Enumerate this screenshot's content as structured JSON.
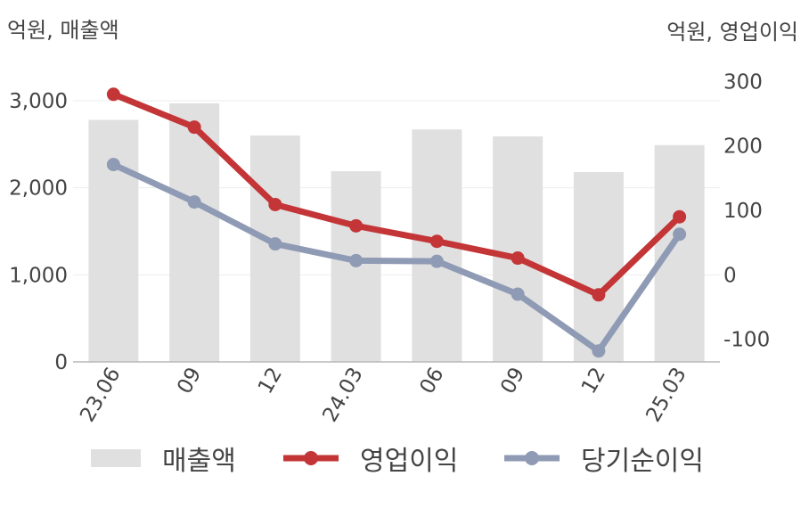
{
  "chart_data": {
    "type": "bar+line",
    "left_axis_unit": "억원, 매출액",
    "right_axis_unit": "억원, 영업이익",
    "categories": [
      "23.06",
      "09",
      "12",
      "24.03",
      "06",
      "09",
      "12",
      "25.03"
    ],
    "left_ticks": [
      "0",
      "1,000",
      "2,000",
      "3,000"
    ],
    "left_ylim": [
      0,
      3000
    ],
    "right_ticks": [
      "-100",
      "0",
      "100",
      "200",
      "300"
    ],
    "right_ylim": [
      -135,
      270
    ],
    "grid": true,
    "legend_position": "bottom",
    "series": [
      {
        "name": "매출액",
        "kind": "bar",
        "axis": "left",
        "color": "#e0e0e0",
        "values": [
          2780,
          2970,
          2600,
          2190,
          2670,
          2590,
          2180,
          2490
        ]
      },
      {
        "name": "영업이익",
        "kind": "line",
        "axis": "right",
        "color": "#c33536",
        "values": [
          280,
          229,
          109,
          76,
          52,
          26,
          -31,
          90
        ]
      },
      {
        "name": "당기순이익",
        "kind": "line",
        "axis": "right",
        "color": "#8f9bb4",
        "values": [
          171,
          113,
          48,
          22,
          21,
          -30,
          -118,
          63
        ]
      }
    ]
  }
}
